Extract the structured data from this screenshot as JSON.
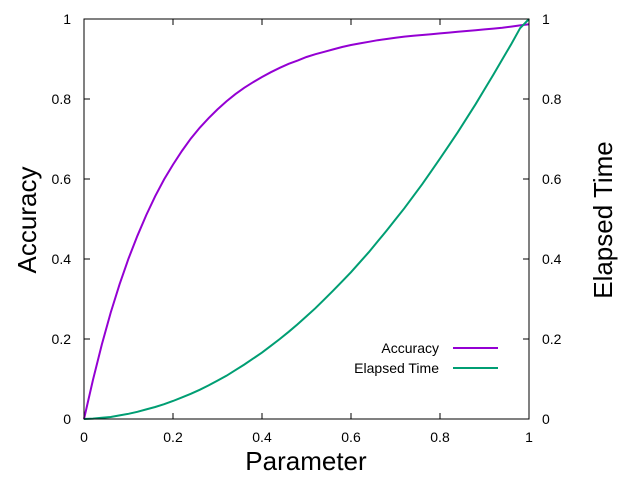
{
  "chart_data": {
    "type": "line",
    "xlabel": "Parameter",
    "ylabel": "Accuracy",
    "y2label": "Elapsed Time",
    "xlim": [
      0,
      1
    ],
    "ylim": [
      0,
      1
    ],
    "y2lim": [
      0,
      1
    ],
    "xticks": [
      "0",
      "0.2",
      "0.4",
      "0.6",
      "0.8",
      "1"
    ],
    "yticks": [
      "0",
      "0.2",
      "0.4",
      "0.6",
      "0.8",
      "1"
    ],
    "y2ticks": [
      "0",
      "0.2",
      "0.4",
      "0.6",
      "0.8",
      "1"
    ],
    "grid": false,
    "legend_position": "bottom-right",
    "series": [
      {
        "name": "Accuracy",
        "color": "#9400d3",
        "x": [
          0,
          0.02,
          0.04,
          0.06,
          0.08,
          0.1,
          0.12,
          0.14,
          0.16,
          0.18,
          0.2,
          0.22,
          0.24,
          0.26,
          0.28,
          0.3,
          0.32,
          0.34,
          0.36,
          0.38,
          0.4,
          0.42,
          0.44,
          0.46,
          0.48,
          0.5,
          0.52,
          0.54,
          0.56,
          0.58,
          0.6,
          0.62,
          0.64,
          0.66,
          0.68,
          0.7,
          0.72,
          0.74,
          0.76,
          0.78,
          0.8,
          0.82,
          0.84,
          0.86,
          0.88,
          0.9,
          0.92,
          0.94,
          0.96,
          0.98,
          1
        ],
        "values": [
          0,
          0.097,
          0.186,
          0.266,
          0.337,
          0.401,
          0.458,
          0.51,
          0.557,
          0.599,
          0.636,
          0.67,
          0.701,
          0.728,
          0.752,
          0.774,
          0.794,
          0.812,
          0.828,
          0.842,
          0.855,
          0.867,
          0.878,
          0.888,
          0.896,
          0.905,
          0.912,
          0.918,
          0.924,
          0.93,
          0.935,
          0.939,
          0.943,
          0.947,
          0.95,
          0.953,
          0.956,
          0.958,
          0.96,
          0.962,
          0.964,
          0.966,
          0.968,
          0.97,
          0.972,
          0.974,
          0.976,
          0.978,
          0.981,
          0.984,
          0.987
        ]
      },
      {
        "name": "Elapsed Time",
        "color": "#009e73",
        "x": [
          0,
          0.02,
          0.04,
          0.06,
          0.08,
          0.1,
          0.12,
          0.14,
          0.16,
          0.18,
          0.2,
          0.22,
          0.24,
          0.26,
          0.28,
          0.3,
          0.32,
          0.34,
          0.36,
          0.38,
          0.4,
          0.42,
          0.44,
          0.46,
          0.48,
          0.5,
          0.52,
          0.54,
          0.56,
          0.58,
          0.6,
          0.62,
          0.64,
          0.66,
          0.68,
          0.7,
          0.72,
          0.74,
          0.76,
          0.78,
          0.8,
          0.82,
          0.84,
          0.86,
          0.88,
          0.9,
          0.92,
          0.94,
          0.96,
          0.98,
          1
        ],
        "values": [
          0,
          0.001,
          0.003,
          0.005,
          0.009,
          0.013,
          0.018,
          0.024,
          0.03,
          0.037,
          0.045,
          0.054,
          0.063,
          0.073,
          0.084,
          0.096,
          0.108,
          0.122,
          0.136,
          0.151,
          0.166,
          0.183,
          0.2,
          0.218,
          0.237,
          0.257,
          0.277,
          0.299,
          0.321,
          0.344,
          0.367,
          0.392,
          0.417,
          0.444,
          0.471,
          0.499,
          0.527,
          0.557,
          0.587,
          0.619,
          0.651,
          0.684,
          0.717,
          0.752,
          0.787,
          0.824,
          0.861,
          0.899,
          0.937,
          0.977,
          1.0
        ]
      }
    ]
  }
}
